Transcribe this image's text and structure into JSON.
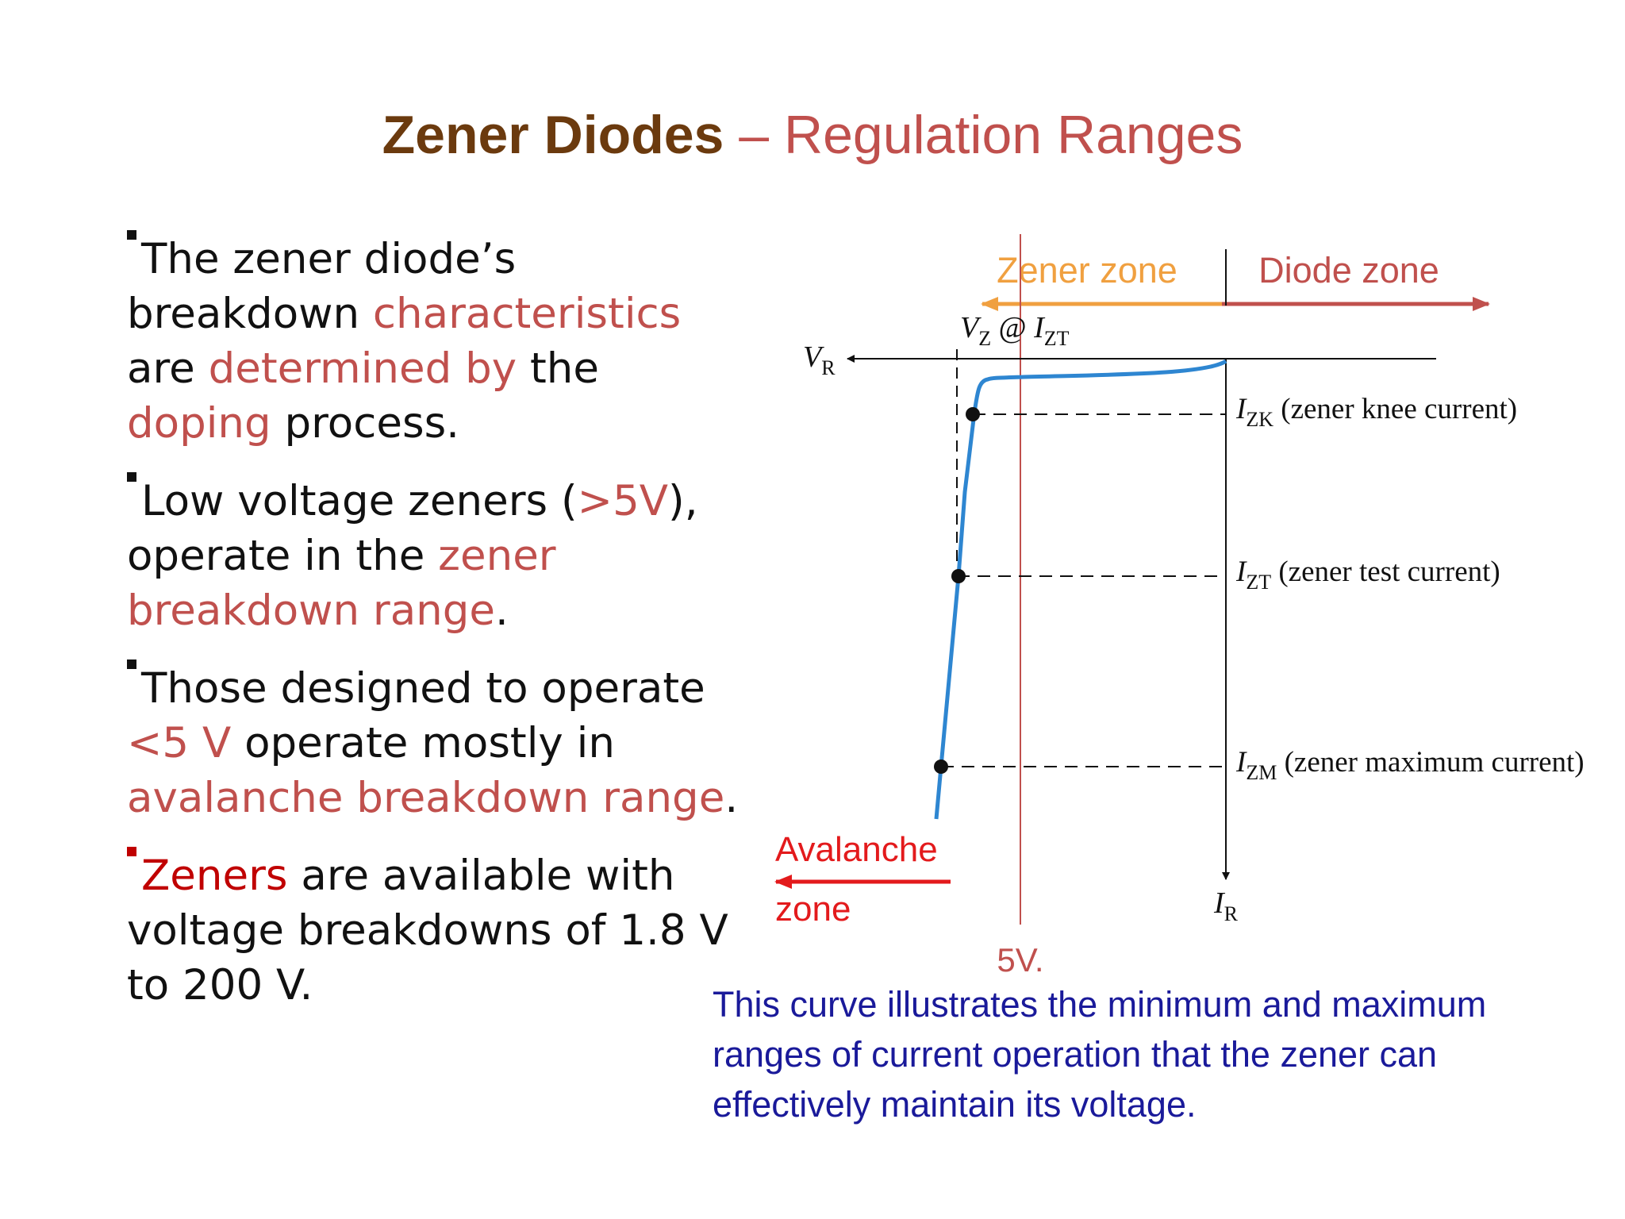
{
  "slide": {
    "title": {
      "strong": "Zener Diodes",
      "accent": " – Regulation Ranges"
    },
    "bullets": [
      {
        "parts": [
          {
            "text": "The zener diode’s breakdown ",
            "style": "normal"
          },
          {
            "text": "characteristics",
            "style": "highlight"
          },
          {
            "text": " are ",
            "style": "normal"
          },
          {
            "text": "determined by",
            "style": "highlight"
          },
          {
            "text": " the ",
            "style": "normal"
          },
          {
            "text": "doping",
            "style": "highlight"
          },
          {
            "text": " process.",
            "style": "normal"
          }
        ]
      },
      {
        "parts": [
          {
            "text": "Low voltage zeners (",
            "style": "normal"
          },
          {
            "text": ">5V",
            "style": "highlight"
          },
          {
            "text": "), operate in the ",
            "style": "normal"
          },
          {
            "text": "zener breakdown range",
            "style": "highlight"
          },
          {
            "text": ".",
            "style": "normal"
          }
        ]
      },
      {
        "parts": [
          {
            "text": "Those designed to operate ",
            "style": "normal"
          },
          {
            "text": "<5 V",
            "style": "highlight"
          },
          {
            "text": " operate mostly in ",
            "style": "normal"
          },
          {
            "text": "avalanche breakdown range",
            "style": "highlight"
          },
          {
            "text": ".",
            "style": "normal"
          }
        ]
      },
      {
        "marker": "red",
        "parts": [
          {
            "text": "Zeners",
            "style": "red"
          },
          {
            "text": " are available with voltage breakdowns of 1.8 V to 200 V.",
            "style": "normal"
          }
        ]
      }
    ],
    "diagram": {
      "zener_zone_label": "Zener zone",
      "diode_zone_label": "Diode zone",
      "vz_label": {
        "main": "V",
        "sub": "Z",
        "at": " @ ",
        "main2": "I",
        "sub2": "ZT"
      },
      "vr_label": {
        "main": "V",
        "sub": "R"
      },
      "ir_label": {
        "main": "I",
        "sub": "R"
      },
      "izk_label": {
        "main": "I",
        "sub": "ZK",
        "desc": " (zener knee current)"
      },
      "izt_label": {
        "main": "I",
        "sub": "ZT",
        "desc": " (zener test current)"
      },
      "izm_label": {
        "main": "I",
        "sub": "ZM",
        "desc": " (zener maximum current)"
      },
      "avalanche_label_1": "Avalanche",
      "avalanche_label_2": "zone",
      "five_v_label": "5V."
    },
    "caption": "This curve illustrates the minimum and maximum ranges of current operation that the zener can effectively maintain its voltage.",
    "colors": {
      "title_dark": "#6b3a0e",
      "accent": "#c0504d",
      "red": "#c00000",
      "bright_red": "#e31a1c",
      "orange": "#f0a040",
      "curve_blue": "#2e86d1",
      "caption_blue": "#1a1a9a"
    }
  }
}
